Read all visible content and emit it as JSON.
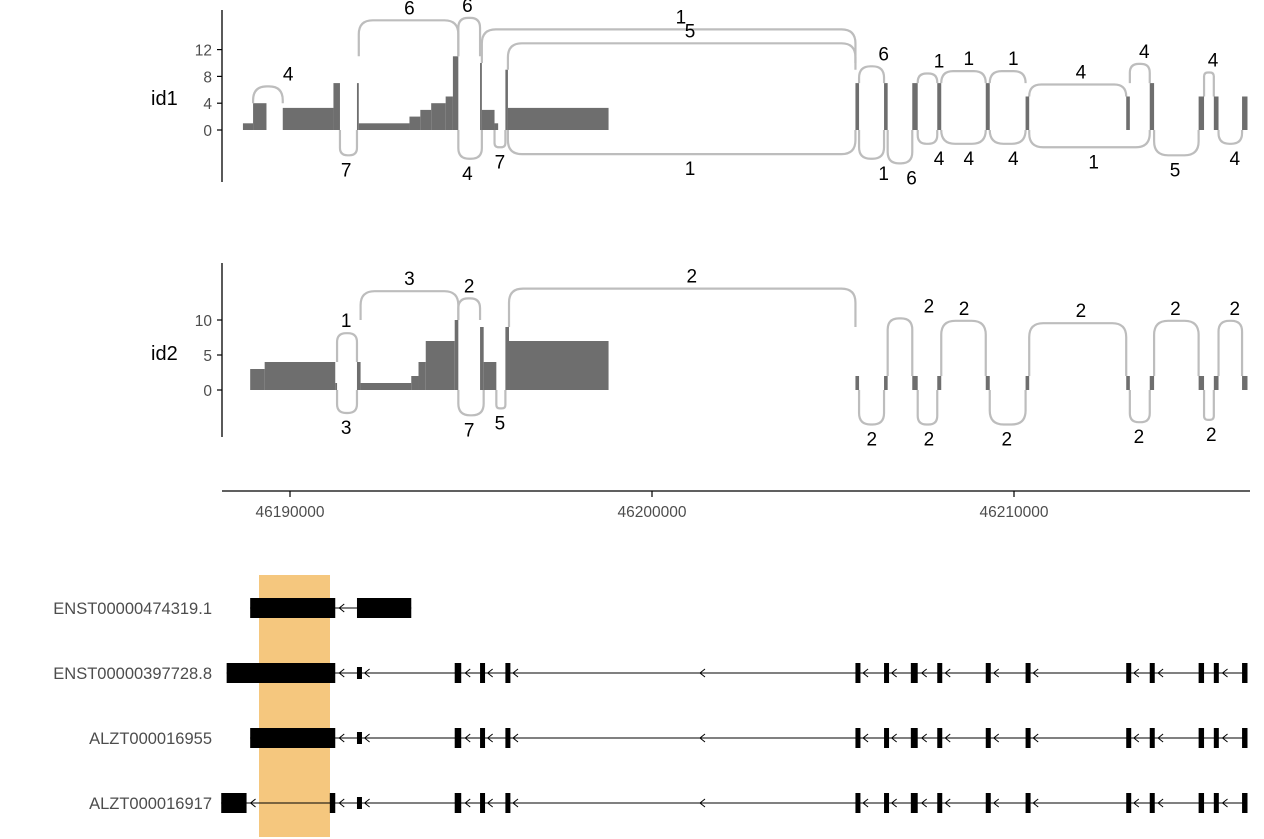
{
  "colors": {
    "coverage": "#6e6e6e",
    "arc": "#bdbdbd",
    "axis": "#000000",
    "tick_text": "#4d4d4d",
    "highlight": "#f5c77e",
    "exon": "#000000"
  },
  "chart_data": [
    {
      "type": "sashimi",
      "sample": "id1",
      "yticks": [
        "0",
        "4",
        "8",
        "12"
      ],
      "coverage": [
        {
          "x0": 46188700,
          "x1": 46188980,
          "y": 1
        },
        {
          "x0": 46188980,
          "x1": 46189350,
          "y": 4
        },
        {
          "x0": 46189800,
          "x1": 46191200,
          "y": 3.3
        },
        {
          "x0": 46191200,
          "x1": 46191380,
          "y": 7
        },
        {
          "x0": 46191850,
          "x1": 46191900,
          "y": 7
        },
        {
          "x0": 46191900,
          "x1": 46193300,
          "y": 1
        },
        {
          "x0": 46193300,
          "x1": 46193600,
          "y": 2
        },
        {
          "x0": 46193600,
          "x1": 46193900,
          "y": 3
        },
        {
          "x0": 46193900,
          "x1": 46194300,
          "y": 4
        },
        {
          "x0": 46194300,
          "x1": 46194500,
          "y": 5
        },
        {
          "x0": 46194500,
          "x1": 46194650,
          "y": 11
        },
        {
          "x0": 46195250,
          "x1": 46195300,
          "y": 10
        },
        {
          "x0": 46195300,
          "x1": 46195650,
          "y": 3
        },
        {
          "x0": 46195650,
          "x1": 46195750,
          "y": 1
        },
        {
          "x0": 46195950,
          "x1": 46196020,
          "y": 9
        },
        {
          "x0": 46196020,
          "x1": 46198800,
          "y": 3.3
        },
        {
          "x0": 46205620,
          "x1": 46205720,
          "y": 7
        },
        {
          "x0": 46206410,
          "x1": 46206510,
          "y": 7
        },
        {
          "x0": 46207190,
          "x1": 46207340,
          "y": 7
        },
        {
          "x0": 46207880,
          "x1": 46207990,
          "y": 7
        },
        {
          "x0": 46209220,
          "x1": 46209330,
          "y": 7
        },
        {
          "x0": 46210320,
          "x1": 46210420,
          "y": 5
        },
        {
          "x0": 46213100,
          "x1": 46213200,
          "y": 5
        },
        {
          "x0": 46213750,
          "x1": 46213870,
          "y": 7
        },
        {
          "x0": 46215100,
          "x1": 46215250,
          "y": 5
        },
        {
          "x0": 46215520,
          "x1": 46215650,
          "y": 5
        },
        {
          "x0": 46216300,
          "x1": 46216450,
          "y": 5
        }
      ],
      "junctions": [
        {
          "x0": 46188980,
          "x1": 46189800,
          "count": "4",
          "side": "top",
          "label_x": 46189950,
          "lift": 7
        },
        {
          "x0": 46191380,
          "x1": 46191850,
          "count": "7",
          "side": "bottom",
          "label_x": 46191550,
          "lift": 22
        },
        {
          "x0": 46191900,
          "x1": 46194650,
          "count": "6",
          "side": "top",
          "label_x": 46193300,
          "lift": 15
        },
        {
          "x0": 46194650,
          "x1": 46195250,
          "count": "6",
          "side": "top",
          "label_x": 46194900,
          "lift": 16
        },
        {
          "x0": 46194650,
          "x1": 46195300,
          "count": "4",
          "side": "bottom",
          "label_x": 46194900,
          "lift": 25
        },
        {
          "x0": 46195300,
          "x1": 46205620,
          "count": "1",
          "side": "top",
          "label_x": 46200800,
          "lift": 14
        },
        {
          "x0": 46196020,
          "x1": 46205620,
          "count": "5",
          "side": "top",
          "label_x": 46201050,
          "lift": 11
        },
        {
          "x0": 46195650,
          "x1": 46195950,
          "count": "7",
          "side": "bottom",
          "label_x": 46195800,
          "lift": 15
        },
        {
          "x0": 46196020,
          "x1": 46205620,
          "count": "1",
          "side": "bottom",
          "label_x": 46201050,
          "lift": 21
        },
        {
          "x0": 46205720,
          "x1": 46206410,
          "count": "6",
          "side": "top",
          "label_x": 46206400,
          "lift": 7
        },
        {
          "x0": 46205720,
          "x1": 46206410,
          "count": "1",
          "side": "bottom",
          "label_x": 46206400,
          "lift": 25
        },
        {
          "x0": 46206510,
          "x1": 46207190,
          "count": "6",
          "side": "bottom",
          "label_x": 46207170,
          "lift": 29
        },
        {
          "x0": 46207340,
          "x1": 46207880,
          "count": "1",
          "side": "top",
          "label_x": 46207930,
          "lift": 4
        },
        {
          "x0": 46207340,
          "x1": 46207880,
          "count": "4",
          "side": "bottom",
          "label_x": 46207930,
          "lift": 12
        },
        {
          "x0": 46207990,
          "x1": 46209220,
          "count": "1",
          "side": "top",
          "label_x": 46208750,
          "lift": 5
        },
        {
          "x0": 46207990,
          "x1": 46209220,
          "count": "4",
          "side": "bottom",
          "label_x": 46208750,
          "lift": 12
        },
        {
          "x0": 46209330,
          "x1": 46210320,
          "count": "1",
          "side": "top",
          "label_x": 46209980,
          "lift": 5
        },
        {
          "x0": 46209330,
          "x1": 46210320,
          "count": "4",
          "side": "bottom",
          "label_x": 46209980,
          "lift": 12
        },
        {
          "x0": 46210420,
          "x1": 46213100,
          "count": "4",
          "side": "top",
          "label_x": 46211850,
          "lift": 5
        },
        {
          "x0": 46210420,
          "x1": 46213750,
          "count": "1",
          "side": "bottom",
          "label_x": 46212200,
          "lift": 15
        },
        {
          "x0": 46213200,
          "x1": 46213750,
          "count": "4",
          "side": "top",
          "label_x": 46213600,
          "lift": 8
        },
        {
          "x0": 46213870,
          "x1": 46215100,
          "count": "5",
          "side": "bottom",
          "label_x": 46214450,
          "lift": 22
        },
        {
          "x0": 46215250,
          "x1": 46215520,
          "count": "4",
          "side": "top",
          "label_x": 46215500,
          "lift": 10
        },
        {
          "x0": 46215650,
          "x1": 46216300,
          "count": "4",
          "side": "bottom",
          "label_x": 46216100,
          "lift": 12
        }
      ]
    },
    {
      "type": "sashimi",
      "sample": "id2",
      "yticks": [
        "0",
        "5",
        "10"
      ],
      "coverage": [
        {
          "x0": 46188900,
          "x1": 46189300,
          "y": 3
        },
        {
          "x0": 46189300,
          "x1": 46191250,
          "y": 4
        },
        {
          "x0": 46191250,
          "x1": 46191300,
          "y": 1
        },
        {
          "x0": 46191850,
          "x1": 46191950,
          "y": 4
        },
        {
          "x0": 46191950,
          "x1": 46193350,
          "y": 1
        },
        {
          "x0": 46193350,
          "x1": 46193550,
          "y": 2
        },
        {
          "x0": 46193550,
          "x1": 46193750,
          "y": 4
        },
        {
          "x0": 46193750,
          "x1": 46194550,
          "y": 7
        },
        {
          "x0": 46194550,
          "x1": 46194650,
          "y": 10
        },
        {
          "x0": 46195250,
          "x1": 46195350,
          "y": 9
        },
        {
          "x0": 46195350,
          "x1": 46195700,
          "y": 4
        },
        {
          "x0": 46195950,
          "x1": 46196050,
          "y": 9
        },
        {
          "x0": 46196050,
          "x1": 46198800,
          "y": 7
        },
        {
          "x0": 46205620,
          "x1": 46205720,
          "y": 2
        },
        {
          "x0": 46206410,
          "x1": 46206510,
          "y": 2
        },
        {
          "x0": 46207190,
          "x1": 46207340,
          "y": 2
        },
        {
          "x0": 46207880,
          "x1": 46207990,
          "y": 2
        },
        {
          "x0": 46209220,
          "x1": 46209330,
          "y": 2
        },
        {
          "x0": 46210320,
          "x1": 46210420,
          "y": 2
        },
        {
          "x0": 46213100,
          "x1": 46213200,
          "y": 2
        },
        {
          "x0": 46213750,
          "x1": 46213870,
          "y": 2
        },
        {
          "x0": 46215100,
          "x1": 46215250,
          "y": 2
        },
        {
          "x0": 46215520,
          "x1": 46215650,
          "y": 2
        },
        {
          "x0": 46216300,
          "x1": 46216450,
          "y": 2
        }
      ],
      "junctions": [
        {
          "x0": 46191300,
          "x1": 46191850,
          "count": "1",
          "side": "top",
          "label_x": 46191550,
          "lift": 12
        },
        {
          "x0": 46191300,
          "x1": 46191850,
          "count": "3",
          "side": "bottom",
          "label_x": 46191550,
          "lift": 20
        },
        {
          "x0": 46191950,
          "x1": 46194650,
          "count": "3",
          "side": "top",
          "label_x": 46193300,
          "lift": 12
        },
        {
          "x0": 46194650,
          "x1": 46195250,
          "count": "2",
          "side": "top",
          "label_x": 46194950,
          "lift": 9
        },
        {
          "x0": 46194650,
          "x1": 46195350,
          "count": "7",
          "side": "bottom",
          "label_x": 46194950,
          "lift": 22
        },
        {
          "x0": 46195700,
          "x1": 46195950,
          "count": "5",
          "side": "bottom",
          "label_x": 46195800,
          "lift": 16
        },
        {
          "x0": 46196050,
          "x1": 46205620,
          "count": "2",
          "side": "top",
          "label_x": 46201100,
          "lift": 16
        },
        {
          "x0": 46205720,
          "x1": 46206410,
          "count": "2",
          "side": "bottom",
          "label_x": 46206070,
          "lift": 30
        },
        {
          "x0": 46206510,
          "x1": 46207190,
          "count": "2",
          "side": "top",
          "label_x": 46207650,
          "lift": 24
        },
        {
          "x0": 46207340,
          "x1": 46207880,
          "count": "2",
          "side": "bottom",
          "label_x": 46207650,
          "lift": 30
        },
        {
          "x0": 46207990,
          "x1": 46209220,
          "count": "2",
          "side": "top",
          "label_x": 46208620,
          "lift": 23
        },
        {
          "x0": 46209330,
          "x1": 46210320,
          "count": "2",
          "side": "bottom",
          "label_x": 46209800,
          "lift": 30
        },
        {
          "x0": 46210420,
          "x1": 46213100,
          "count": "2",
          "side": "top",
          "label_x": 46211850,
          "lift": 22
        },
        {
          "x0": 46213200,
          "x1": 46213750,
          "count": "2",
          "side": "bottom",
          "label_x": 46213450,
          "lift": 28
        },
        {
          "x0": 46213870,
          "x1": 46215100,
          "count": "2",
          "side": "top",
          "label_x": 46214460,
          "lift": 23
        },
        {
          "x0": 46215250,
          "x1": 46215520,
          "count": "2",
          "side": "bottom",
          "label_x": 46215450,
          "lift": 26
        },
        {
          "x0": 46215650,
          "x1": 46216300,
          "count": "2",
          "side": "top",
          "label_x": 46216100,
          "lift": 23
        }
      ]
    },
    {
      "type": "gene_track",
      "x_ticks": [
        "46190000",
        "46200000",
        "46210000"
      ],
      "x_tick_values": [
        46190000,
        46200000,
        46210000
      ],
      "xlim": [
        46188100,
        46216500
      ],
      "highlight": {
        "x0": 46188900,
        "x1": 46190850
      },
      "transcripts": [
        {
          "name": "ENST00000474319.1",
          "exons": [
            {
              "x0": 46188900,
              "x1": 46191250,
              "cds": true
            },
            {
              "x0": 46191850,
              "x1": 46193350,
              "cds": true
            }
          ]
        },
        {
          "name": "ENST00000397728.8",
          "exons": [
            {
              "x0": 46188250,
              "x1": 46191250,
              "cds": true
            },
            {
              "x0": 46191850,
              "x1": 46191950,
              "cds": false
            },
            {
              "x0": 46194550,
              "x1": 46194730,
              "cds": true
            },
            {
              "x0": 46195250,
              "x1": 46195350,
              "cds": true
            },
            {
              "x0": 46195950,
              "x1": 46196050,
              "cds": true
            },
            {
              "x0": 46205620,
              "x1": 46205720,
              "cds": true
            },
            {
              "x0": 46206410,
              "x1": 46206510,
              "cds": true
            },
            {
              "x0": 46207150,
              "x1": 46207340,
              "cds": true
            },
            {
              "x0": 46207880,
              "x1": 46207990,
              "cds": true
            },
            {
              "x0": 46209220,
              "x1": 46209330,
              "cds": true
            },
            {
              "x0": 46210320,
              "x1": 46210420,
              "cds": true
            },
            {
              "x0": 46213100,
              "x1": 46213200,
              "cds": true
            },
            {
              "x0": 46213750,
              "x1": 46213870,
              "cds": true
            },
            {
              "x0": 46215100,
              "x1": 46215250,
              "cds": true
            },
            {
              "x0": 46215520,
              "x1": 46215650,
              "cds": true
            },
            {
              "x0": 46216300,
              "x1": 46216450,
              "cds": true
            }
          ]
        },
        {
          "name": "ALZT000016955",
          "exons": [
            {
              "x0": 46188900,
              "x1": 46191250,
              "cds": true
            },
            {
              "x0": 46191850,
              "x1": 46191950,
              "cds": false
            },
            {
              "x0": 46194550,
              "x1": 46194730,
              "cds": true
            },
            {
              "x0": 46195250,
              "x1": 46195350,
              "cds": true
            },
            {
              "x0": 46195950,
              "x1": 46196050,
              "cds": true
            },
            {
              "x0": 46205620,
              "x1": 46205720,
              "cds": true
            },
            {
              "x0": 46206410,
              "x1": 46206510,
              "cds": true
            },
            {
              "x0": 46207150,
              "x1": 46207340,
              "cds": true
            },
            {
              "x0": 46207880,
              "x1": 46207990,
              "cds": true
            },
            {
              "x0": 46209220,
              "x1": 46209330,
              "cds": true
            },
            {
              "x0": 46210320,
              "x1": 46210420,
              "cds": true
            },
            {
              "x0": 46213100,
              "x1": 46213200,
              "cds": true
            },
            {
              "x0": 46213750,
              "x1": 46213870,
              "cds": true
            },
            {
              "x0": 46215100,
              "x1": 46215250,
              "cds": true
            },
            {
              "x0": 46215520,
              "x1": 46215650,
              "cds": true
            },
            {
              "x0": 46216300,
              "x1": 46216450,
              "cds": true
            }
          ]
        },
        {
          "name": "ALZT000016917",
          "exons": [
            {
              "x0": 46188100,
              "x1": 46188800,
              "cds": true
            },
            {
              "x0": 46191100,
              "x1": 46191250,
              "cds": true
            },
            {
              "x0": 46191850,
              "x1": 46191950,
              "cds": false
            },
            {
              "x0": 46194550,
              "x1": 46194730,
              "cds": true
            },
            {
              "x0": 46195250,
              "x1": 46195350,
              "cds": true
            },
            {
              "x0": 46195950,
              "x1": 46196050,
              "cds": true
            },
            {
              "x0": 46205620,
              "x1": 46205720,
              "cds": true
            },
            {
              "x0": 46206410,
              "x1": 46206510,
              "cds": true
            },
            {
              "x0": 46207150,
              "x1": 46207340,
              "cds": true
            },
            {
              "x0": 46207880,
              "x1": 46207990,
              "cds": true
            },
            {
              "x0": 46209220,
              "x1": 46209330,
              "cds": true
            },
            {
              "x0": 46210320,
              "x1": 46210420,
              "cds": true
            },
            {
              "x0": 46213100,
              "x1": 46213200,
              "cds": true
            },
            {
              "x0": 46213750,
              "x1": 46213870,
              "cds": true
            },
            {
              "x0": 46215100,
              "x1": 46215250,
              "cds": true
            },
            {
              "x0": 46215520,
              "x1": 46215650,
              "cds": true
            },
            {
              "x0": 46216300,
              "x1": 46216450,
              "cds": true
            }
          ]
        }
      ]
    }
  ]
}
